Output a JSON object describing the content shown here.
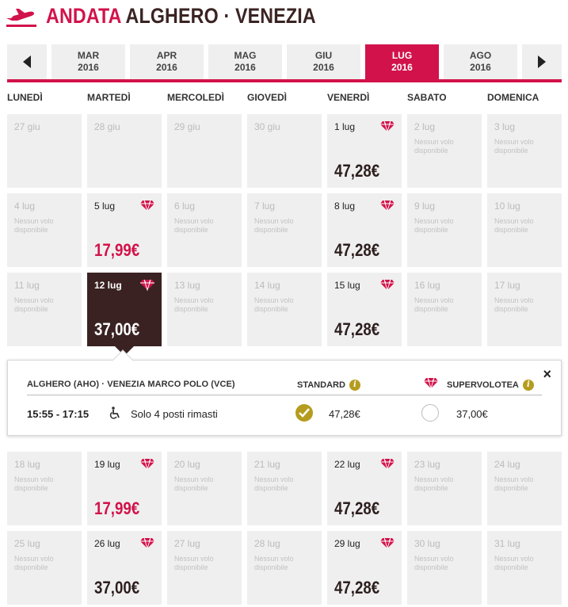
{
  "header": {
    "andata": "ANDATA",
    "route": "ALGHERO · VENEZIA"
  },
  "months": [
    {
      "m": "MAR",
      "y": "2016",
      "active": false
    },
    {
      "m": "APR",
      "y": "2016",
      "active": false
    },
    {
      "m": "MAG",
      "y": "2016",
      "active": false
    },
    {
      "m": "GIU",
      "y": "2016",
      "active": false
    },
    {
      "m": "LUG",
      "y": "2016",
      "active": true
    },
    {
      "m": "AGO",
      "y": "2016",
      "active": false
    }
  ],
  "weekdays": [
    "LUNEDÌ",
    "MARTEDÌ",
    "MERCOLEDÌ",
    "GIOVEDÌ",
    "VENERDÌ",
    "SABATO",
    "DOMENICA"
  ],
  "no_flight": "Nessun volo disponibile",
  "weeks": [
    [
      {
        "day": "27 giu",
        "type": "outside"
      },
      {
        "day": "28 giu",
        "type": "outside"
      },
      {
        "day": "29 giu",
        "type": "outside"
      },
      {
        "day": "30 giu",
        "type": "outside"
      },
      {
        "day": "1 lug",
        "type": "avail",
        "price": "47,28€"
      },
      {
        "day": "2 lug",
        "type": "none"
      },
      {
        "day": "3 lug",
        "type": "none"
      }
    ],
    [
      {
        "day": "4 lug",
        "type": "none"
      },
      {
        "day": "5 lug",
        "type": "avail",
        "price": "17,99€",
        "promo": true
      },
      {
        "day": "6 lug",
        "type": "none"
      },
      {
        "day": "7 lug",
        "type": "none"
      },
      {
        "day": "8 lug",
        "type": "avail",
        "price": "47,28€"
      },
      {
        "day": "9 lug",
        "type": "none"
      },
      {
        "day": "10 lug",
        "type": "none"
      }
    ],
    [
      {
        "day": "11 lug",
        "type": "none"
      },
      {
        "day": "12 lug",
        "type": "selected",
        "price": "37,00€"
      },
      {
        "day": "13 lug",
        "type": "none"
      },
      {
        "day": "14 lug",
        "type": "none"
      },
      {
        "day": "15 lug",
        "type": "avail",
        "price": "47,28€"
      },
      {
        "day": "16 lug",
        "type": "none"
      },
      {
        "day": "17 lug",
        "type": "none"
      }
    ],
    [
      {
        "day": "18 lug",
        "type": "none"
      },
      {
        "day": "19 lug",
        "type": "avail",
        "price": "17,99€",
        "promo": true
      },
      {
        "day": "20 lug",
        "type": "none"
      },
      {
        "day": "21 lug",
        "type": "none"
      },
      {
        "day": "22 lug",
        "type": "avail",
        "price": "47,28€"
      },
      {
        "day": "23 lug",
        "type": "none"
      },
      {
        "day": "24 lug",
        "type": "none"
      }
    ],
    [
      {
        "day": "25 lug",
        "type": "none"
      },
      {
        "day": "26 lug",
        "type": "avail",
        "price": "37,00€"
      },
      {
        "day": "27 lug",
        "type": "none"
      },
      {
        "day": "28 lug",
        "type": "none"
      },
      {
        "day": "29 lug",
        "type": "avail",
        "price": "47,28€"
      },
      {
        "day": "30 lug",
        "type": "none"
      },
      {
        "day": "31 lug",
        "type": "none"
      }
    ]
  ],
  "flight": {
    "route_label": "ALGHERO (AHO) · VENEZIA MARCO POLO (VCE)",
    "standard_label": "STANDARD",
    "super_label": "SUPERVOLOTEA",
    "time": "15:55 - 17:15",
    "seats": "Solo 4 posti rimasti",
    "standard_price": "47,28€",
    "super_price": "37,00€",
    "close": "×",
    "info": "i"
  },
  "colors": {
    "brand": "#d2124a",
    "selected": "#3a2222",
    "gold": "#b59c1e"
  }
}
